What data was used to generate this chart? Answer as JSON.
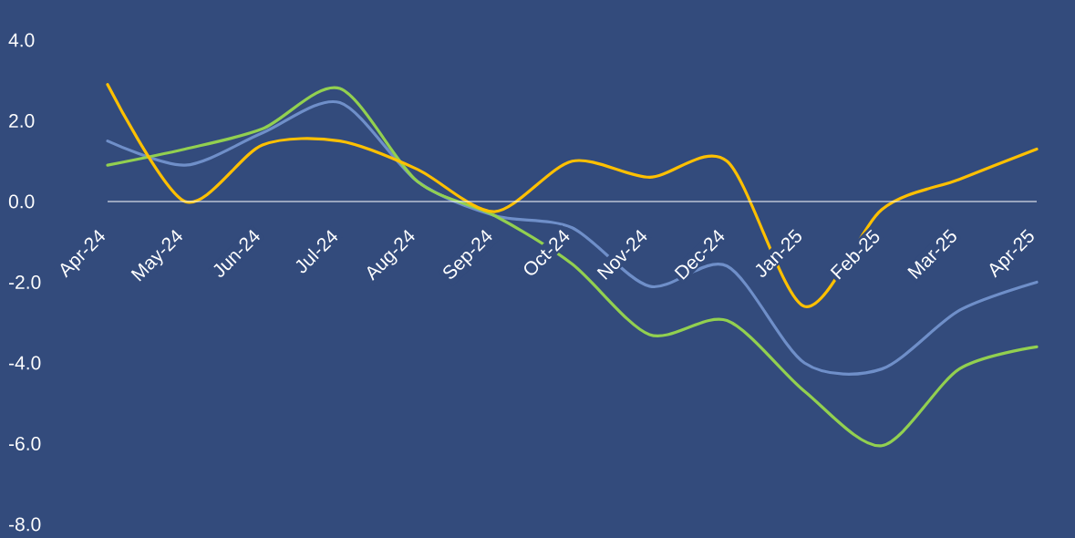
{
  "chart_data": {
    "type": "line",
    "categories": [
      "Apr-24",
      "May-24",
      "Jun-24",
      "Jul-24",
      "Aug-24",
      "Sep-24",
      "Oct-24",
      "Nov-24",
      "Dec-24",
      "Jan-25",
      "Feb-25",
      "Mar-25",
      "Apr-25"
    ],
    "series": [
      {
        "color": "#6f8fc9",
        "values": [
          1.5,
          0.9,
          1.7,
          2.45,
          0.5,
          -0.35,
          -0.65,
          -2.1,
          -1.6,
          -4.0,
          -4.15,
          -2.7,
          -2.0
        ]
      },
      {
        "color": "#92d050",
        "values": [
          0.9,
          1.3,
          1.8,
          2.8,
          0.5,
          -0.35,
          -1.55,
          -3.3,
          -2.95,
          -4.7,
          -6.05,
          -4.15,
          -3.6
        ]
      },
      {
        "color": "#ffc000",
        "values": [
          2.9,
          0.0,
          1.4,
          1.5,
          0.8,
          -0.25,
          1.0,
          0.6,
          1.0,
          -2.6,
          -0.2,
          0.55,
          1.3
        ]
      }
    ],
    "ylim": [
      -8,
      4
    ],
    "yticks": [
      {
        "value": 4,
        "label": "4.0"
      },
      {
        "value": 2,
        "label": "2.0"
      },
      {
        "value": 0,
        "label": "0.0"
      },
      {
        "value": -2,
        "label": "-2.0"
      },
      {
        "value": -4,
        "label": "-4.0"
      },
      {
        "value": -6,
        "label": "-6.0"
      },
      {
        "value": -8,
        "label": "-8.0"
      }
    ]
  }
}
